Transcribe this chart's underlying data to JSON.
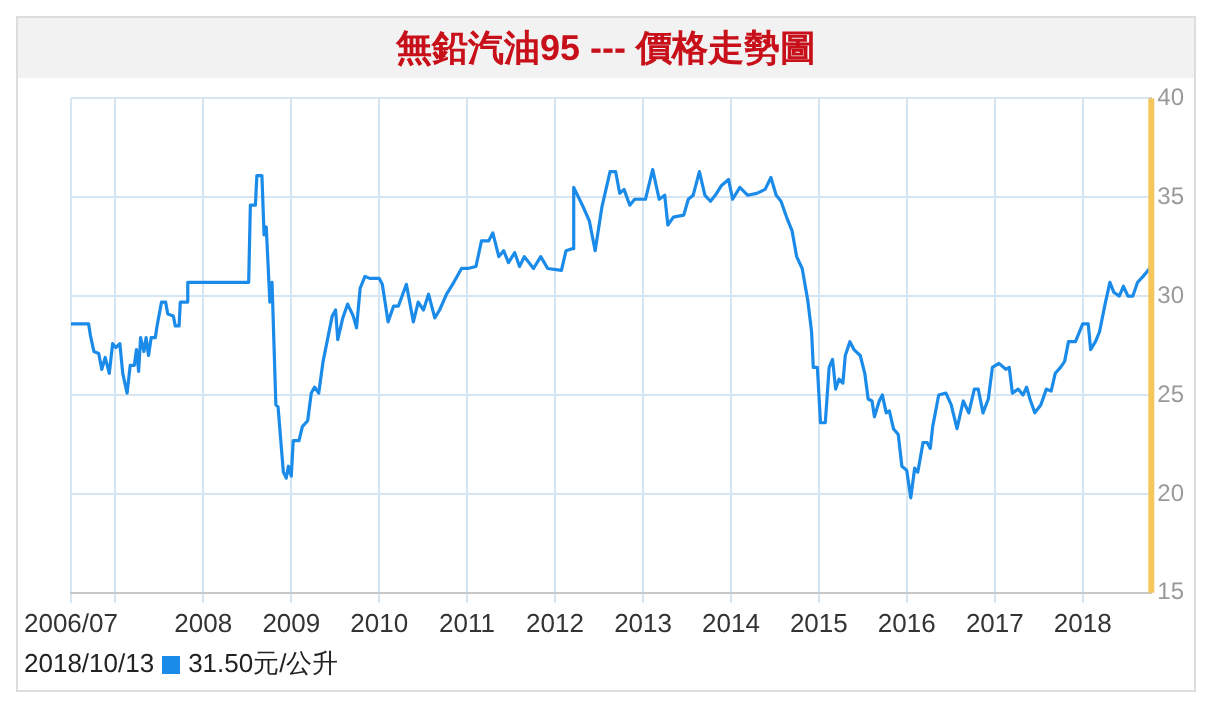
{
  "chart_data": {
    "type": "line",
    "title": "無鉛汽油95 --- 價格走勢圖",
    "x": [
      "2006-07-01",
      "2006-09-12",
      "2006-09-20",
      "2006-10-04",
      "2006-10-24",
      "2006-11-06",
      "2006-11-20",
      "2006-12-07",
      "2006-12-21",
      "2007-01-03",
      "2007-01-20",
      "2007-02-01",
      "2007-02-19",
      "2007-03-04",
      "2007-03-21",
      "2007-03-30",
      "2007-04-08",
      "2007-04-16",
      "2007-04-30",
      "2007-05-09",
      "2007-05-19",
      "2007-05-30",
      "2007-06-16",
      "2007-06-25",
      "2007-07-12",
      "2007-07-29",
      "2007-08-07",
      "2007-08-30",
      "2007-09-07",
      "2007-09-23",
      "2007-09-28",
      "2007-10-26",
      "2007-10-29",
      "2008-07-08",
      "2008-07-15",
      "2008-08-05",
      "2008-08-11",
      "2008-09-01",
      "2008-09-10",
      "2008-09-19",
      "2008-10-04",
      "2008-10-13",
      "2008-10-29",
      "2008-11-07",
      "2008-11-29",
      "2008-12-11",
      "2008-12-20",
      "2009-01-01",
      "2009-01-09",
      "2009-02-02",
      "2009-02-16",
      "2009-03-10",
      "2009-03-25",
      "2009-04-08",
      "2009-04-25",
      "2009-05-13",
      "2009-05-28",
      "2009-06-20",
      "2009-07-04",
      "2009-07-13",
      "2009-08-03",
      "2009-08-23",
      "2009-09-15",
      "2009-09-29",
      "2009-10-14",
      "2009-11-03",
      "2009-11-23",
      "2010-01-01",
      "2010-01-14",
      "2010-02-07",
      "2010-03-02",
      "2010-03-22",
      "2010-04-24",
      "2010-05-23",
      "2010-06-12",
      "2010-07-04",
      "2010-07-25",
      "2010-08-20",
      "2010-09-09",
      "2010-10-08",
      "2010-11-07",
      "2010-12-09",
      "2011-01-04",
      "2011-02-07",
      "2011-03-02",
      "2011-04-01",
      "2011-04-18",
      "2011-05-13",
      "2011-06-02",
      "2011-06-22",
      "2011-07-18",
      "2011-08-07",
      "2011-08-27",
      "2011-10-04",
      "2011-11-03",
      "2011-12-02",
      "2012-01-28",
      "2012-02-16",
      "2012-03-12",
      "2012-03-19",
      "2012-04-24",
      "2012-05-23",
      "2012-06-16",
      "2012-07-14",
      "2012-08-17",
      "2012-09-09",
      "2012-09-26",
      "2012-10-14",
      "2012-11-07",
      "2012-11-27",
      "2013-01-11",
      "2013-02-10",
      "2013-03-09",
      "2013-04-01",
      "2013-04-14",
      "2013-05-07",
      "2013-06-19",
      "2013-07-08",
      "2013-07-28",
      "2013-08-23",
      "2013-09-15",
      "2013-10-08",
      "2013-10-28",
      "2013-11-23",
      "2013-12-22",
      "2014-01-08",
      "2014-02-07",
      "2014-03-12",
      "2014-04-18",
      "2014-05-23",
      "2014-06-16",
      "2014-07-08",
      "2014-07-28",
      "2014-08-20",
      "2014-09-12",
      "2014-10-01",
      "2014-10-24",
      "2014-11-16",
      "2014-12-02",
      "2014-12-09",
      "2014-12-26",
      "2015-01-08",
      "2015-01-28",
      "2015-02-13",
      "2015-02-27",
      "2015-03-12",
      "2015-03-26",
      "2015-04-11",
      "2015-04-21",
      "2015-05-10",
      "2015-05-27",
      "2015-06-22",
      "2015-07-11",
      "2015-07-25",
      "2015-08-10",
      "2015-08-20",
      "2015-09-09",
      "2015-09-22",
      "2015-10-08",
      "2015-10-21",
      "2015-11-07",
      "2015-11-27",
      "2015-12-12",
      "2016-01-01",
      "2016-01-18",
      "2016-02-03",
      "2016-02-16",
      "2016-03-09",
      "2016-03-26",
      "2016-04-08",
      "2016-04-18",
      "2016-05-13",
      "2016-06-12",
      "2016-07-04",
      "2016-07-28",
      "2016-08-23",
      "2016-09-15",
      "2016-10-08",
      "2016-10-24",
      "2016-11-13",
      "2016-12-05",
      "2016-12-22",
      "2017-01-18",
      "2017-02-16",
      "2017-03-02",
      "2017-03-15",
      "2017-04-08",
      "2017-04-28",
      "2017-05-13",
      "2017-05-27",
      "2017-06-16",
      "2017-07-11",
      "2017-08-03",
      "2017-08-23",
      "2017-09-09",
      "2017-10-01",
      "2017-10-18",
      "2017-11-03",
      "2017-12-02",
      "2018-01-01",
      "2018-01-24",
      "2018-02-03",
      "2018-02-23",
      "2018-03-12",
      "2018-04-04",
      "2018-04-24",
      "2018-05-10",
      "2018-06-02",
      "2018-06-19",
      "2018-07-08",
      "2018-07-28",
      "2018-08-17",
      "2018-09-09",
      "2018-10-13"
    ],
    "series": [
      {
        "color": "#1a8be8",
        "values": [
          28.6,
          28.6,
          28.0,
          27.2,
          27.1,
          26.3,
          26.9,
          26.1,
          27.6,
          27.4,
          27.6,
          26.1,
          25.1,
          26.5,
          26.5,
          27.3,
          26.2,
          27.9,
          27.2,
          27.9,
          27.0,
          27.9,
          27.9,
          28.6,
          29.7,
          29.7,
          29.1,
          29.0,
          28.5,
          28.5,
          29.7,
          29.7,
          30.7,
          30.7,
          34.6,
          34.6,
          36.1,
          36.1,
          33.1,
          33.5,
          29.7,
          30.7,
          24.5,
          24.4,
          21.1,
          20.8,
          21.4,
          20.9,
          22.7,
          22.7,
          23.4,
          23.7,
          25.1,
          25.4,
          25.1,
          26.7,
          27.6,
          29.0,
          29.3,
          27.8,
          28.9,
          29.6,
          29.0,
          28.4,
          30.4,
          31.0,
          30.9,
          30.9,
          30.6,
          28.7,
          29.5,
          29.5,
          30.6,
          28.7,
          29.7,
          29.3,
          30.1,
          28.9,
          29.3,
          30.1,
          30.7,
          31.4,
          31.4,
          31.5,
          32.8,
          32.8,
          33.2,
          32.0,
          32.3,
          31.7,
          32.2,
          31.5,
          32.0,
          31.4,
          32.0,
          31.4,
          31.3,
          32.3,
          32.4,
          35.5,
          34.6,
          33.8,
          32.3,
          34.5,
          36.3,
          36.3,
          35.2,
          35.4,
          34.6,
          34.9,
          34.9,
          36.4,
          34.9,
          35.1,
          33.6,
          34.0,
          34.1,
          34.9,
          35.1,
          36.3,
          35.1,
          34.8,
          35.1,
          35.6,
          35.9,
          34.9,
          35.5,
          35.1,
          35.2,
          35.4,
          36.0,
          35.1,
          34.8,
          34.0,
          33.3,
          32.0,
          31.4,
          29.8,
          28.2,
          26.4,
          26.4,
          23.6,
          23.6,
          26.4,
          26.8,
          25.3,
          25.8,
          25.6,
          27.0,
          27.7,
          27.3,
          27.0,
          26.1,
          24.8,
          24.7,
          23.9,
          24.7,
          25.0,
          24.1,
          24.2,
          23.3,
          23.0,
          21.4,
          21.2,
          19.8,
          21.3,
          21.1,
          22.6,
          22.6,
          22.3,
          23.4,
          25.0,
          25.1,
          24.5,
          23.3,
          24.7,
          24.1,
          25.3,
          25.3,
          24.1,
          24.8,
          26.4,
          26.6,
          26.3,
          26.4,
          25.1,
          25.3,
          25.0,
          25.4,
          24.8,
          24.1,
          24.5,
          25.3,
          25.2,
          26.1,
          26.4,
          26.7,
          27.7,
          27.7,
          28.6,
          28.6,
          27.3,
          27.7,
          28.2,
          29.6,
          30.7,
          30.2,
          30.0,
          30.5,
          30.0,
          30.0,
          30.7,
          31.0,
          31.5
        ]
      }
    ],
    "xlim": [
      "2006-07-01",
      "2018-10-13"
    ],
    "xticks": [
      {
        "value": "2006-07",
        "label": "2006/07"
      },
      {
        "value": "2007",
        "label": null
      },
      "2008",
      "2009",
      "2010",
      "2011",
      "2012",
      "2013",
      "2014",
      "2015",
      "2016",
      "2017",
      "2018"
    ],
    "ylim": [
      15,
      40
    ],
    "yticks": [
      15,
      20,
      25,
      30,
      35,
      40
    ],
    "grid": true,
    "ref_lines": [
      {
        "axis": "x",
        "value": "2018-10-13",
        "color": "#f5c65a"
      }
    ],
    "annotations": [
      "2018/10/13",
      "31.50元/公升"
    ]
  }
}
